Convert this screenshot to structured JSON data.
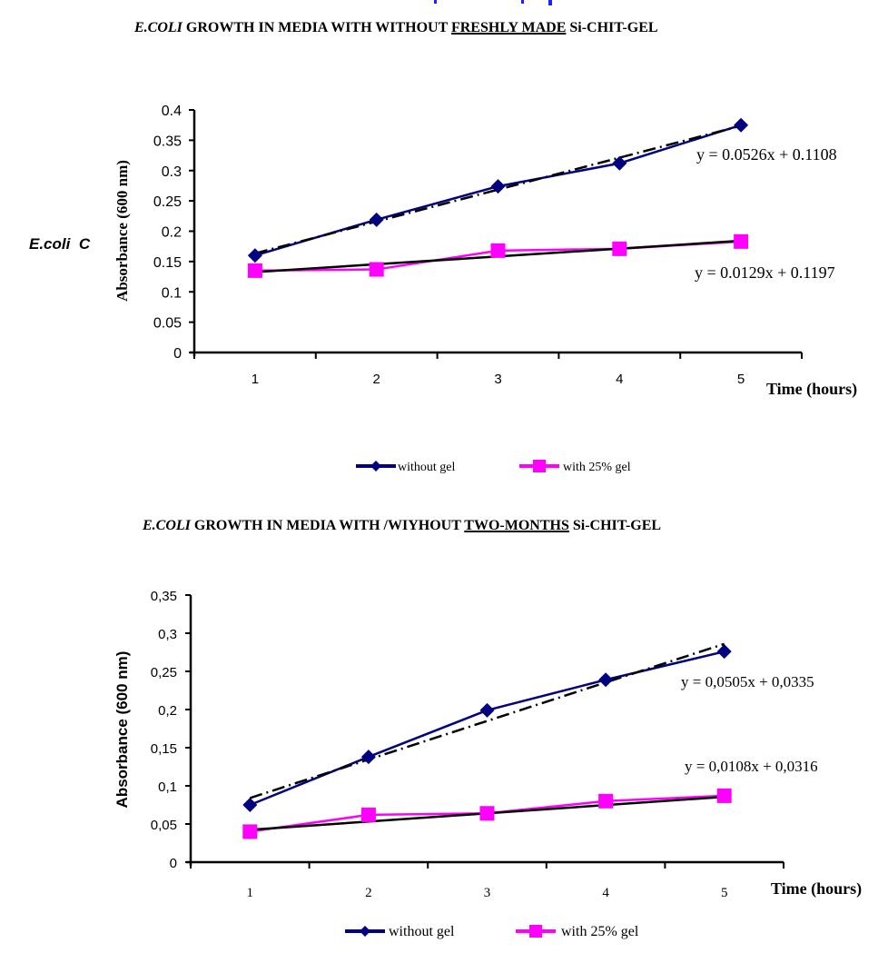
{
  "side_label": {
    "italic": "E.coli",
    "rest": "C"
  },
  "chart_data": [
    {
      "type": "line",
      "title_parts": {
        "italic": "E.COLI",
        "mid": " GROWTH IN MEDIA WITH WITHOUT ",
        "underlined": "FRESHLY  MADE",
        "end": " Si-CHIT-GEL"
      },
      "xlabel": "Time (hours)",
      "ylabel": "Absorbance (600 nm)",
      "categories": [
        "1",
        "2",
        "3",
        "4",
        "5"
      ],
      "x": [
        1,
        2,
        3,
        4,
        5
      ],
      "ylim": [
        0,
        0.4
      ],
      "yticks": [
        "0",
        "0.05",
        "0.1",
        "0.15",
        "0.2",
        "0.25",
        "0.3",
        "0.35",
        "0.4"
      ],
      "ytick_values": [
        0,
        0.05,
        0.1,
        0.15,
        0.2,
        0.25,
        0.3,
        0.35,
        0.4
      ],
      "grid": false,
      "legend_position": "bottom",
      "series": [
        {
          "name": "without gel",
          "color": "#000080",
          "marker": "diamond",
          "values": [
            0.16,
            0.219,
            0.274,
            0.312,
            0.375
          ],
          "trendline": {
            "slope": 0.0526,
            "intercept": 0.1108,
            "style": "dash-dot",
            "equation": "y = 0.0526x + 0.1108"
          }
        },
        {
          "name": "with 25% gel",
          "color": "#ff00ff",
          "marker": "square",
          "values": [
            0.135,
            0.137,
            0.168,
            0.171,
            0.183
          ],
          "trendline": {
            "slope": 0.0129,
            "intercept": 0.1197,
            "style": "solid",
            "equation": "y = 0.0129x + 0.1197"
          }
        }
      ]
    },
    {
      "type": "line",
      "title_parts": {
        "italic": "E.COLI",
        "mid": " GROWTH IN MEDIA WITH /WIYHOUT ",
        "underlined": "TWO-MONTHS",
        "end": " Si-CHIT-GEL"
      },
      "xlabel": "Time (hours)",
      "ylabel": "Absorbance (600 nm)",
      "categories": [
        "1",
        "2",
        "3",
        "4",
        "5"
      ],
      "x": [
        1,
        2,
        3,
        4,
        5
      ],
      "ylim": [
        0,
        0.35
      ],
      "yticks": [
        "0",
        "0,05",
        "0,1",
        "0,15",
        "0,2",
        "0,25",
        "0,3",
        "0,35"
      ],
      "ytick_values": [
        0,
        0.05,
        0.1,
        0.15,
        0.2,
        0.25,
        0.3,
        0.35
      ],
      "grid": false,
      "legend_position": "bottom",
      "series": [
        {
          "name": "without gel",
          "color": "#000080",
          "marker": "diamond",
          "values": [
            0.075,
            0.138,
            0.199,
            0.239,
            0.276
          ],
          "trendline": {
            "slope": 0.0505,
            "intercept": 0.0335,
            "style": "dash-dot",
            "equation": "y = 0,0505x + 0,0335"
          }
        },
        {
          "name": "with 25% gel",
          "color": "#ff00ff",
          "marker": "square",
          "values": [
            0.04,
            0.062,
            0.064,
            0.08,
            0.087
          ],
          "trendline": {
            "slope": 0.0108,
            "intercept": 0.0316,
            "style": "solid",
            "equation": "y = 0,0108x + 0,0316"
          }
        }
      ]
    }
  ]
}
